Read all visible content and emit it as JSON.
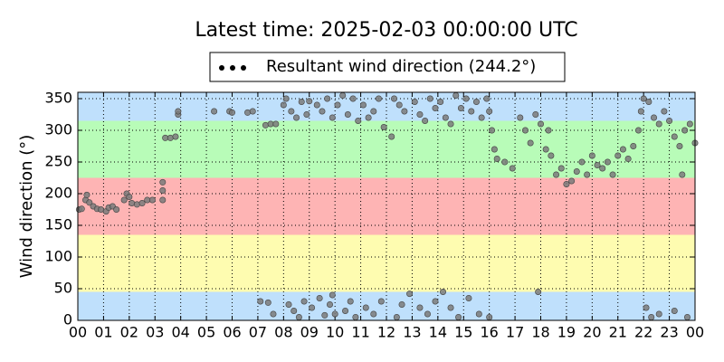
{
  "chart_data": {
    "type": "scatter",
    "title": "Latest time: 2025-02-03 00:00:00 UTC",
    "y_label": "Wind direction (°)",
    "xlim": [
      0,
      24
    ],
    "ylim": [
      0,
      360
    ],
    "xticks": [
      {
        "value": 0,
        "label": "00"
      },
      {
        "value": 1,
        "label": "01"
      },
      {
        "value": 2,
        "label": "02"
      },
      {
        "value": 3,
        "label": "03"
      },
      {
        "value": 4,
        "label": "04"
      },
      {
        "value": 5,
        "label": "05"
      },
      {
        "value": 6,
        "label": "06"
      },
      {
        "value": 7,
        "label": "07"
      },
      {
        "value": 8,
        "label": "08"
      },
      {
        "value": 9,
        "label": "09"
      },
      {
        "value": 10,
        "label": "10"
      },
      {
        "value": 11,
        "label": "11"
      },
      {
        "value": 12,
        "label": "12"
      },
      {
        "value": 13,
        "label": "13"
      },
      {
        "value": 14,
        "label": "14"
      },
      {
        "value": 15,
        "label": "15"
      },
      {
        "value": 16,
        "label": "16"
      },
      {
        "value": 17,
        "label": "17"
      },
      {
        "value": 18,
        "label": "18"
      },
      {
        "value": 19,
        "label": "19"
      },
      {
        "value": 20,
        "label": "20"
      },
      {
        "value": 21,
        "label": "21"
      },
      {
        "value": 22,
        "label": "22"
      },
      {
        "value": 23,
        "label": "23"
      },
      {
        "value": 24,
        "label": "00"
      }
    ],
    "yticks": [
      0,
      50,
      100,
      150,
      200,
      250,
      300,
      350
    ],
    "grid": true,
    "legend_position": "top",
    "bands": [
      {
        "from": 0,
        "to": 45,
        "color": "#bfe0fc"
      },
      {
        "from": 45,
        "to": 135,
        "color": "#fefcb0"
      },
      {
        "from": 135,
        "to": 225,
        "color": "#feb4b4"
      },
      {
        "from": 225,
        "to": 315,
        "color": "#b8fcb8"
      },
      {
        "from": 315,
        "to": 360,
        "color": "#bfe0fc"
      }
    ],
    "series": [
      {
        "name": "Resultant wind direction (244.2°)",
        "color": "#7a7a7a",
        "x": [
          0.05,
          0.15,
          0.3,
          0.35,
          0.45,
          0.6,
          0.75,
          0.9,
          1.1,
          1.2,
          1.35,
          1.5,
          1.8,
          1.9,
          2.0,
          2.1,
          2.3,
          2.5,
          2.7,
          2.9,
          3.3,
          3.3,
          3.3,
          3.4,
          3.6,
          3.8,
          3.9,
          3.9,
          5.3,
          5.9,
          6.0,
          6.6,
          6.8,
          7.3,
          7.5,
          7.7,
          7.1,
          7.4,
          7.6,
          8.0,
          8.1,
          8.3,
          8.5,
          8.7,
          8.9,
          9.0,
          9.3,
          9.5,
          9.7,
          9.9,
          8.2,
          8.4,
          8.6,
          8.8,
          9.1,
          9.4,
          9.6,
          9.8,
          10.0,
          9.9,
          10.1,
          10.3,
          10.5,
          10.7,
          10.9,
          11.1,
          11.3,
          11.5,
          11.7,
          11.9,
          10.4,
          10.6,
          10.8,
          11.2,
          11.5,
          11.8,
          12.2,
          12.3,
          12.5,
          12.7,
          12.4,
          12.6,
          12.9,
          13.1,
          13.3,
          13.5,
          13.7,
          13.9,
          13.3,
          13.6,
          13.9,
          14.1,
          14.3,
          14.5,
          14.7,
          14.9,
          14.2,
          14.5,
          14.8,
          15.1,
          15.3,
          15.5,
          15.7,
          15.9,
          15.2,
          15.6,
          16.0,
          16.0,
          16.1,
          16.2,
          16.3,
          16.6,
          16.9,
          17.2,
          17.4,
          17.6,
          17.8,
          18.0,
          18.2,
          18.3,
          18.4,
          17.9,
          18.6,
          18.8,
          19.0,
          19.2,
          19.4,
          19.6,
          19.8,
          20.0,
          20.2,
          20.4,
          20.6,
          20.8,
          21.0,
          21.2,
          21.4,
          21.6,
          21.8,
          21.9,
          22.0,
          22.2,
          22.4,
          22.6,
          22.8,
          23.0,
          23.2,
          23.4,
          23.6,
          23.8,
          23.5,
          24.0,
          22.1,
          22.3,
          22.6,
          23.2,
          23.7
        ],
        "values": [
          175,
          176,
          190,
          198,
          186,
          180,
          176,
          175,
          172,
          178,
          180,
          175,
          190,
          200,
          195,
          185,
          183,
          185,
          190,
          190,
          205,
          218,
          190,
          288,
          288,
          290,
          325,
          330,
          330,
          330,
          328,
          328,
          330,
          308,
          310,
          310,
          30,
          28,
          10,
          340,
          350,
          330,
          320,
          345,
          325,
          346,
          340,
          330,
          350,
          320,
          25,
          15,
          5,
          30,
          20,
          35,
          8,
          25,
          10,
          40,
          340,
          355,
          325,
          350,
          315,
          340,
          320,
          330,
          350,
          305,
          15,
          30,
          5,
          20,
          10,
          30,
          290,
          350,
          340,
          330,
          5,
          25,
          42,
          345,
          325,
          315,
          350,
          335,
          20,
          10,
          30,
          345,
          320,
          310,
          355,
          335,
          45,
          20,
          5,
          350,
          330,
          345,
          320,
          350,
          35,
          10,
          5,
          330,
          300,
          270,
          255,
          250,
          240,
          320,
          300,
          280,
          325,
          310,
          270,
          300,
          260,
          45,
          230,
          240,
          215,
          220,
          235,
          250,
          230,
          260,
          245,
          240,
          250,
          230,
          260,
          270,
          255,
          275,
          300,
          330,
          350,
          345,
          320,
          310,
          330,
          315,
          290,
          275,
          300,
          310,
          230,
          280,
          20,
          5,
          10,
          15,
          5
        ]
      }
    ]
  }
}
